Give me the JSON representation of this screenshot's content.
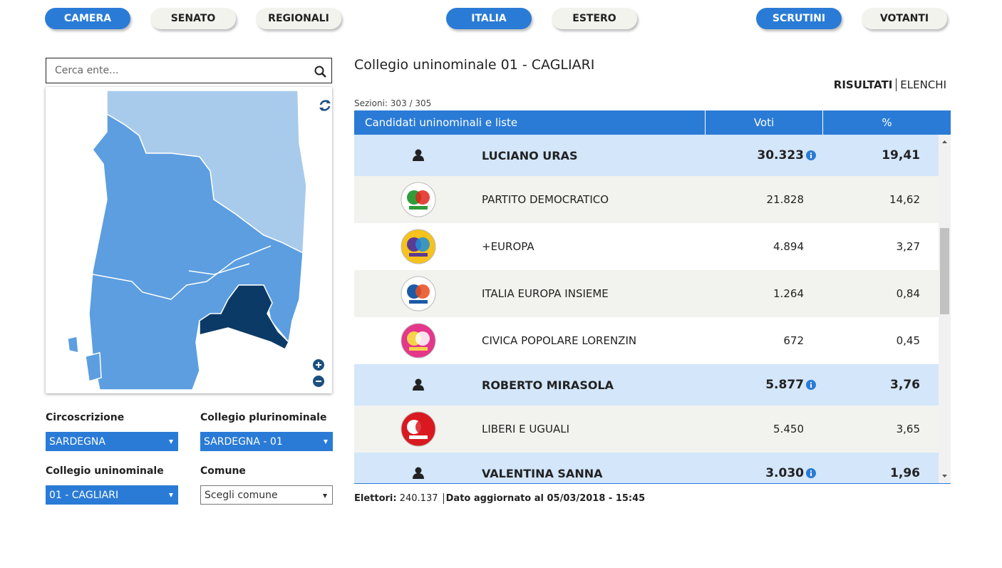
{
  "nav": [
    "CAMERA",
    "SENATO",
    "REGIONALI",
    "ITALIA",
    "ESTERO",
    "SCRUTINI",
    "VOTANTI"
  ],
  "search_placeholder": "Cerca ente...",
  "filters": [
    {
      "label": "Circoscrizione",
      "value": "SARDEGNA"
    },
    {
      "label": "Collegio plurinominale",
      "value": "SARDEGNA - 01"
    },
    {
      "label": "Collegio uninominale",
      "value": "01 - CAGLIARI"
    },
    {
      "label": "Comune",
      "value": "Scegli comune"
    }
  ],
  "results": {
    "title": "Collegio uninominale 01 - CAGLIARI",
    "tabs": [
      "RISULTATI",
      "ELENCHI"
    ],
    "sections_label": "Sezioni:",
    "sections": "303 / 305",
    "columns": [
      "Candidati uninominali e liste",
      "Voti",
      "%"
    ],
    "candidates": [
      {
        "name": "LUCIANO URAS",
        "votes": "30.323",
        "pct": "19,41",
        "lists": [
          {
            "name": "PARTITO DEMOCRATICO",
            "votes": "21.828",
            "pct": "14,62"
          },
          {
            "name": "+EUROPA",
            "votes": "4.894",
            "pct": "3,27"
          },
          {
            "name": "ITALIA EUROPA INSIEME",
            "votes": "1.264",
            "pct": "0,84"
          },
          {
            "name": "CIVICA POPOLARE LORENZIN",
            "votes": "672",
            "pct": "0,45"
          }
        ]
      },
      {
        "name": "ROBERTO MIRASOLA",
        "votes": "5.877",
        "pct": "3,76",
        "lists": [
          {
            "name": "LIBERI E UGUALI",
            "votes": "5.450",
            "pct": "3,65"
          }
        ]
      },
      {
        "name": "VALENTINA SANNA",
        "votes": "3.030",
        "pct": "1,96",
        "lists": []
      }
    ]
  },
  "footer": {
    "voters_label": "Elettori:",
    "voters": "240.137",
    "updated": "Dato aggiornato al 05/03/2018 - 15:45"
  }
}
